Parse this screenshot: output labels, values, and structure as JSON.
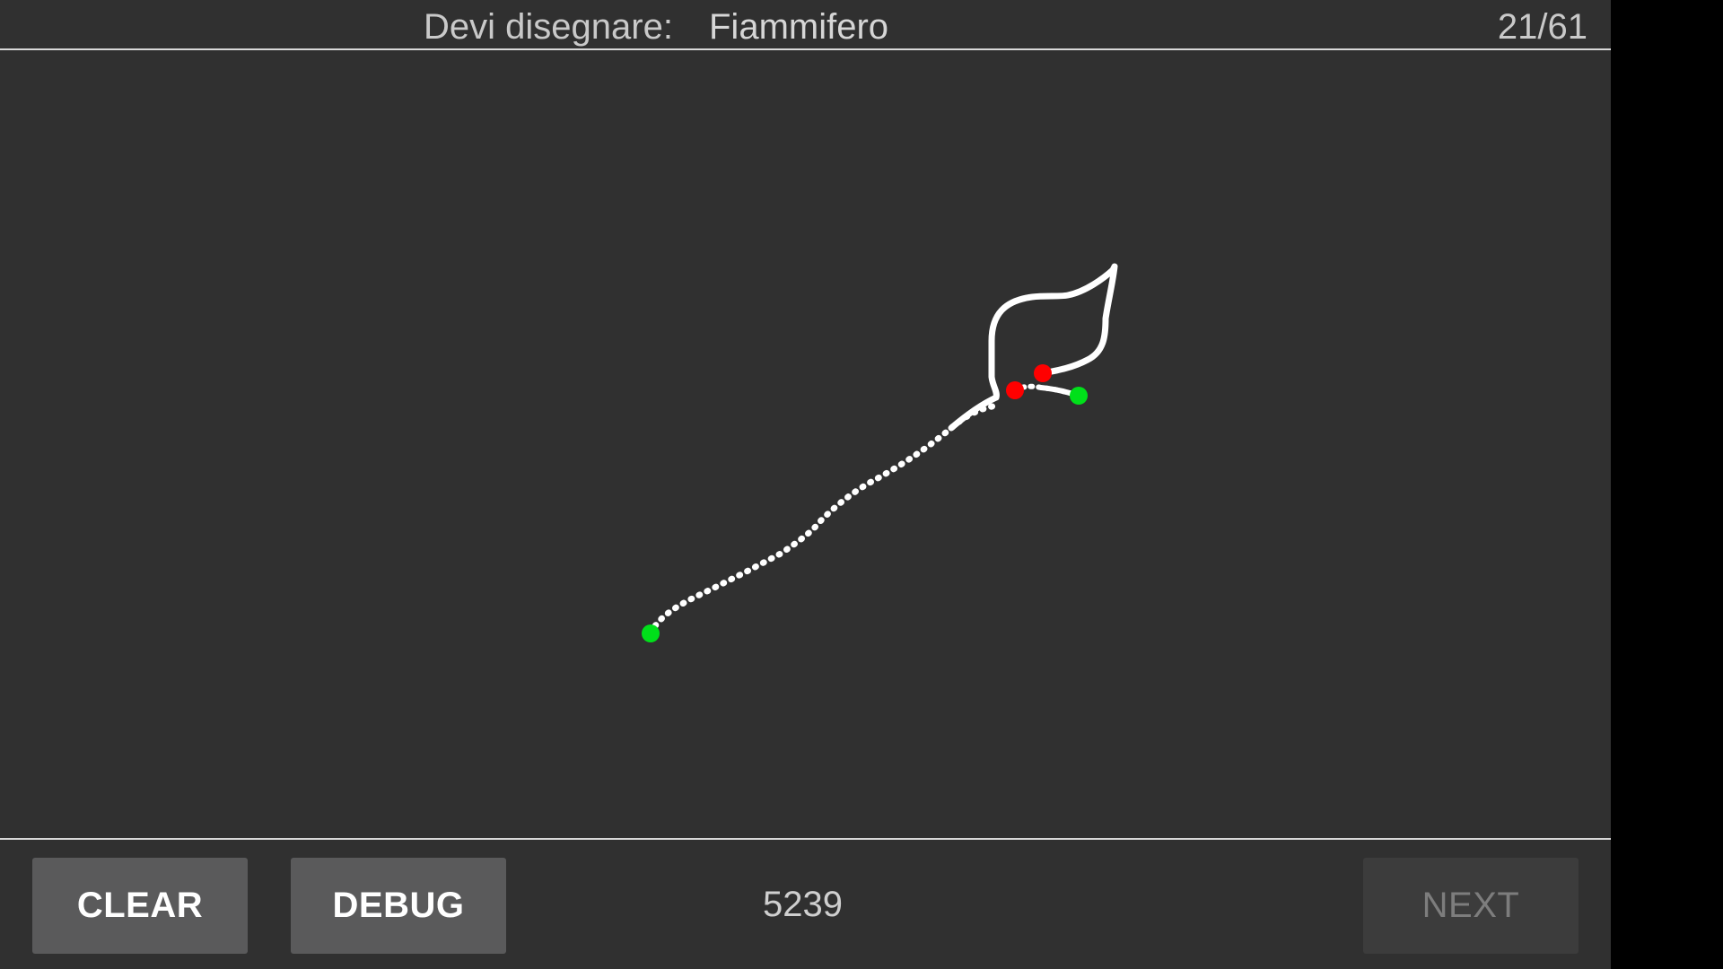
{
  "header": {
    "prompt_label": "Devi disegnare:",
    "prompt_word": "Fiammifero",
    "progress": "21/61"
  },
  "footer": {
    "clear_label": "CLEAR",
    "debug_label": "DEBUG",
    "score": "5239",
    "next_label": "NEXT"
  },
  "colors": {
    "background": "#303030",
    "stroke": "#ffffff",
    "start_marker": "#00e01a",
    "end_marker": "#ff0000"
  }
}
